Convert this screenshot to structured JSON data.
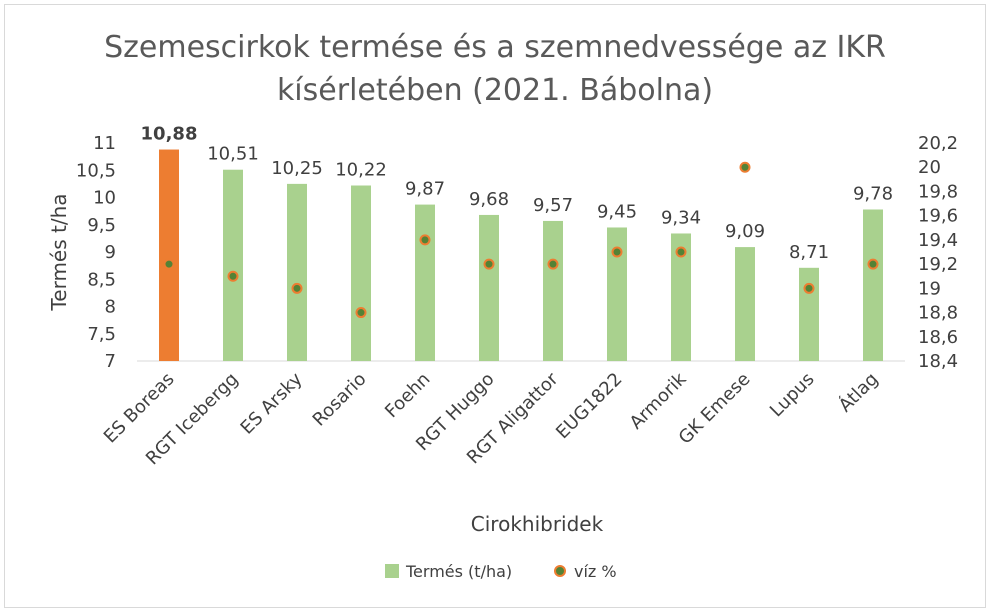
{
  "chart_data": {
    "type": "bar",
    "title_lines": [
      "Szemescirkok termése és a szemnedvessége az IKR",
      "kísérletében (2021. Bábolna)"
    ],
    "xlabel": "Cirokhibridek",
    "ylabel": "Termés t/ha",
    "categories": [
      "ES Boreas",
      "RGT Icebergg",
      "ES Arsky",
      "Rosario",
      "Foehn",
      "RGT Huggo",
      "RGT Aligattor",
      "EUG1822",
      "Armorik",
      "GK Emese",
      "Lupus",
      "Átlag"
    ],
    "series": [
      {
        "name": "Termés (t/ha)",
        "kind": "bar",
        "axis": "left",
        "color": "#a9d18e",
        "highlight_color": "#ed7d31",
        "highlight_index": 0,
        "values": [
          10.88,
          10.51,
          10.25,
          10.22,
          9.87,
          9.68,
          9.57,
          9.45,
          9.34,
          9.09,
          8.71,
          9.78
        ],
        "labels": [
          "10,88",
          "10,51",
          "10,25",
          "10,22",
          "9,87",
          "9,68",
          "9,57",
          "9,45",
          "9,34",
          "9,09",
          "8,71",
          "9,78"
        ]
      },
      {
        "name": "víz %",
        "kind": "scatter",
        "axis": "right",
        "color": "#548235",
        "edge_color": "#ed7d31",
        "values": [
          19.2,
          19.1,
          19.0,
          18.8,
          19.4,
          19.2,
          19.2,
          19.3,
          19.3,
          20.0,
          19.0,
          19.2
        ]
      }
    ],
    "y_left": {
      "ylim": [
        7,
        11
      ],
      "ticks": [
        7,
        7.5,
        8,
        8.5,
        9,
        9.5,
        10,
        10.5,
        11
      ],
      "tick_labels": [
        "7",
        "7,5",
        "8",
        "8,5",
        "9",
        "9,5",
        "10",
        "10,5",
        "11"
      ]
    },
    "y_right": {
      "ylim": [
        18.4,
        20.2
      ],
      "ticks": [
        18.4,
        18.6,
        18.8,
        19,
        19.2,
        19.4,
        19.6,
        19.8,
        20,
        20.2
      ],
      "tick_labels": [
        "18,4",
        "18,6",
        "18,8",
        "19",
        "19,2",
        "19,4",
        "19,6",
        "19,8",
        "20",
        "20,2"
      ]
    },
    "grid": false,
    "legend_position": "bottom"
  }
}
